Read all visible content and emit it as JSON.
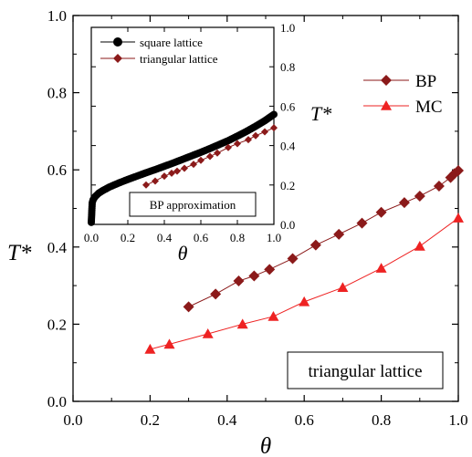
{
  "chart_data": [
    {
      "type": "line",
      "xlabel": "θ",
      "ylabel": "T*",
      "xlim": [
        0.0,
        1.0
      ],
      "ylim": [
        0.0,
        1.0
      ],
      "xticks": [
        "0.0",
        "0.2",
        "0.4",
        "0.6",
        "0.8",
        "1.0"
      ],
      "yticks": [
        "0.0",
        "0.2",
        "0.4",
        "0.6",
        "0.8",
        "1.0"
      ],
      "annotation": "triangular lattice",
      "legend_position": "upper-right",
      "colors": {
        "BP": "#8b1a1a",
        "MC": "#ee2222"
      },
      "series": [
        {
          "name": "BP",
          "marker": "diamond",
          "x": [
            0.3,
            0.37,
            0.43,
            0.47,
            0.51,
            0.57,
            0.63,
            0.69,
            0.75,
            0.8,
            0.86,
            0.9,
            0.95,
            0.98,
            0.99,
            1.0
          ],
          "y": [
            0.245,
            0.278,
            0.312,
            0.325,
            0.342,
            0.37,
            0.405,
            0.433,
            0.462,
            0.49,
            0.515,
            0.532,
            0.558,
            0.58,
            0.59,
            0.598
          ]
        },
        {
          "name": "MC",
          "marker": "triangle",
          "x": [
            0.2,
            0.25,
            0.35,
            0.44,
            0.52,
            0.6,
            0.7,
            0.8,
            0.9,
            1.0
          ],
          "y": [
            0.135,
            0.148,
            0.175,
            0.2,
            0.22,
            0.258,
            0.295,
            0.345,
            0.402,
            0.475
          ]
        }
      ]
    },
    {
      "type": "line",
      "xlabel": "θ",
      "ylabel": "T*",
      "xlim": [
        0.0,
        1.0
      ],
      "ylim": [
        0.0,
        1.0
      ],
      "xticks": [
        "0.0",
        "0.2",
        "0.4",
        "0.6",
        "0.8",
        "1.0"
      ],
      "yticks": [
        "0.0",
        "0.2",
        "0.4",
        "0.6",
        "0.8",
        "1.0"
      ],
      "annotation": "BP approximation",
      "legend_position": "top-left",
      "colors": {
        "square lattice": "#000000",
        "triangular lattice": "#8b1a1a"
      },
      "series": [
        {
          "name": "square lattice",
          "marker": "circle",
          "x": [
            0.0,
            0.005,
            0.01,
            0.02,
            0.04,
            0.06,
            0.08,
            0.1,
            0.15,
            0.2,
            0.25,
            0.3,
            0.35,
            0.4,
            0.45,
            0.5,
            0.55,
            0.6,
            0.65,
            0.7,
            0.75,
            0.8,
            0.85,
            0.9,
            0.95,
            1.0
          ],
          "y": [
            0.01,
            0.11,
            0.125,
            0.14,
            0.158,
            0.17,
            0.18,
            0.19,
            0.21,
            0.228,
            0.245,
            0.262,
            0.278,
            0.295,
            0.312,
            0.33,
            0.348,
            0.366,
            0.385,
            0.405,
            0.425,
            0.448,
            0.472,
            0.498,
            0.526,
            0.558
          ]
        },
        {
          "name": "triangular lattice",
          "marker": "diamond",
          "x": [
            0.3,
            0.35,
            0.4,
            0.44,
            0.47,
            0.51,
            0.56,
            0.6,
            0.65,
            0.69,
            0.75,
            0.8,
            0.86,
            0.9,
            0.95,
            1.0
          ],
          "y": [
            0.2,
            0.22,
            0.245,
            0.26,
            0.27,
            0.285,
            0.305,
            0.325,
            0.345,
            0.362,
            0.39,
            0.41,
            0.43,
            0.45,
            0.47,
            0.49
          ]
        }
      ]
    }
  ]
}
